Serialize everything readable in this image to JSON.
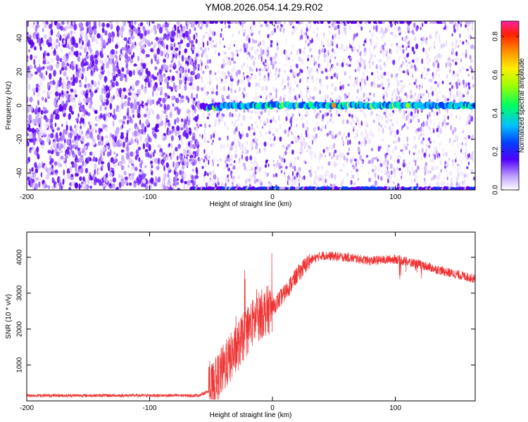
{
  "title": "YM08.2026.054.14.29.R02",
  "chart_data": [
    {
      "type": "heatmap",
      "xlabel": "Height of straight line (km)",
      "ylabel": "Frequency (Hz)",
      "xlim": [
        -200,
        165
      ],
      "ylim": [
        -50,
        50
      ],
      "xticks": [
        -200,
        -100,
        0,
        100
      ],
      "yticks": [
        -40,
        -20,
        0,
        20,
        40
      ],
      "colorbar": {
        "label": "Normalized spectral amplitude",
        "range": [
          0,
          0.88
        ],
        "ticks": [
          0.0,
          0.2,
          0.4,
          0.6,
          0.8
        ]
      },
      "features": {
        "noise_region_x": [
          -200,
          -65
        ],
        "signal_onset_x": -60,
        "carrier_frequency_hz": 0,
        "peak_amplitude": 0.85
      }
    },
    {
      "type": "line",
      "xlabel": "Height of straight line (km)",
      "ylabel": "SNR (10 * v/v)",
      "xlim": [
        -200,
        165
      ],
      "ylim": [
        0,
        4700
      ],
      "xticks": [
        -200,
        -100,
        0,
        100
      ],
      "yticks": [
        1000,
        2000,
        3000,
        4000
      ],
      "series_color": "#ee3333",
      "envelope": {
        "x": [
          -200,
          -150,
          -100,
          -60,
          -50,
          -45,
          -40,
          -30,
          -20,
          -10,
          0,
          10,
          20,
          30,
          40,
          60,
          80,
          100,
          120,
          140,
          165
        ],
        "y": [
          150,
          150,
          150,
          150,
          300,
          600,
          900,
          1400,
          2000,
          2400,
          2600,
          3000,
          3500,
          3900,
          4050,
          4000,
          3900,
          3950,
          3800,
          3600,
          3400
        ]
      }
    }
  ]
}
